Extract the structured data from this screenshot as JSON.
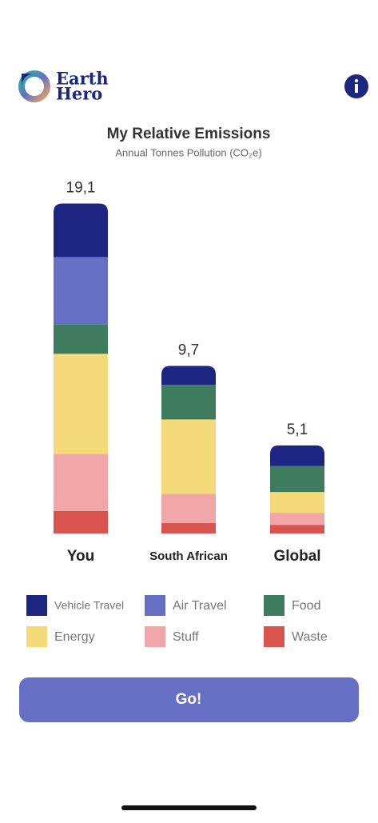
{
  "header": {
    "logo": [
      "Earth",
      "Hero"
    ]
  },
  "chart_data": {
    "type": "stacked-bar",
    "title": "My Relative Emissions",
    "subtitle": "Annual Tonnes Pollution  (CO₂e)",
    "categories": [
      "You",
      "South African",
      "Global"
    ],
    "totals": [
      19.1,
      9.7,
      5.1
    ],
    "total_labels": [
      "19,1",
      "9,7",
      "5,1"
    ],
    "series": [
      {
        "name": "Vehicle Travel",
        "color": "#1c2580",
        "values": [
          3.1,
          1.1,
          1.2
        ]
      },
      {
        "name": "Air Travel",
        "color": "#6570c4",
        "values": [
          3.9,
          0,
          0
        ]
      },
      {
        "name": "Food",
        "color": "#3e7b5f",
        "values": [
          1.7,
          2.0,
          1.5
        ]
      },
      {
        "name": "Energy",
        "color": "#f5da7a",
        "values": [
          5.8,
          4.3,
          1.2
        ]
      },
      {
        "name": "Stuff",
        "color": "#f1a7a7",
        "values": [
          3.3,
          1.7,
          0.7
        ]
      },
      {
        "name": "Waste",
        "color": "#d9534f",
        "values": [
          1.3,
          0.6,
          0.5
        ]
      }
    ]
  },
  "button": {
    "label": "Go!"
  }
}
